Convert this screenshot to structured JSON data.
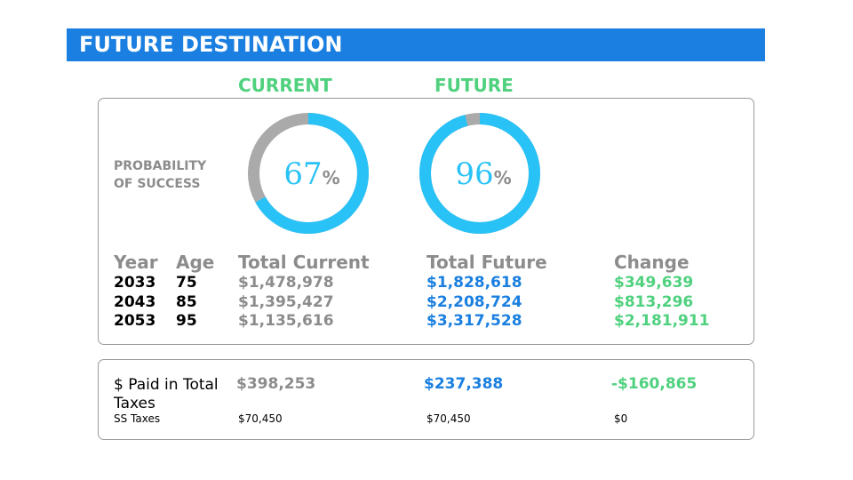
{
  "header": {
    "title": "FUTURE DESTINATION"
  },
  "scenarios": [
    {
      "label": "CURRENT",
      "probability": 67
    },
    {
      "label": "FUTURE",
      "probability": 96
    }
  ],
  "percent_sign": "%",
  "probability_label": [
    "PROBABILITY",
    "OF SUCCESS"
  ],
  "table": {
    "columns": [
      "Year",
      "Age",
      "Total Current",
      "Total Future",
      "Change"
    ],
    "rows": [
      [
        "2033",
        "75",
        "$1,478,978",
        "$1,828,618",
        "$349,639"
      ],
      [
        "2043",
        "85",
        "$1,395,427",
        "$2,208,724",
        "$813,296"
      ],
      [
        "2053",
        "95",
        "$1,135,616",
        "$3,317,528",
        "$2,181,911"
      ]
    ]
  },
  "taxes": {
    "label": "$ Paid in Total Taxes",
    "values": [
      "$398,253",
      "$237,388",
      "-$160,865"
    ],
    "ss_label": "SS Taxes",
    "ss_values": [
      "$70,450",
      "$70,450",
      "$0"
    ]
  }
}
